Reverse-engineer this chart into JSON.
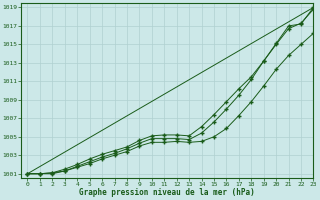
{
  "title": "Graphe pression niveau de la mer (hPa)",
  "background_color": "#cce8e8",
  "grid_color": "#b0d0d0",
  "line_color": "#1a5c1a",
  "text_color": "#1a5c1a",
  "xlim": [
    -0.5,
    23
  ],
  "ylim": [
    1000.5,
    1019.5
  ],
  "yticks": [
    1001,
    1003,
    1005,
    1007,
    1009,
    1011,
    1013,
    1015,
    1017,
    1019
  ],
  "xticks": [
    0,
    1,
    2,
    3,
    4,
    5,
    6,
    7,
    8,
    9,
    10,
    11,
    12,
    13,
    14,
    15,
    16,
    17,
    18,
    19,
    20,
    21,
    22,
    23
  ],
  "series1_x": [
    0,
    1,
    2,
    3,
    4,
    5,
    6,
    7,
    8,
    9,
    10,
    11,
    12,
    13,
    14,
    15,
    16,
    17,
    18,
    19,
    20,
    21,
    22,
    23
  ],
  "series1_y": [
    1001.0,
    1001.0,
    1001.1,
    1001.3,
    1001.7,
    1002.1,
    1002.6,
    1003.0,
    1003.4,
    1004.0,
    1004.4,
    1004.4,
    1004.5,
    1004.4,
    1004.5,
    1005.0,
    1005.9,
    1007.3,
    1008.8,
    1010.5,
    1012.3,
    1013.8,
    1015.0,
    1016.2
  ],
  "series2_x": [
    0,
    1,
    2,
    3,
    4,
    5,
    6,
    7,
    8,
    9,
    10,
    11,
    12,
    13,
    14,
    15,
    16,
    17,
    18,
    19,
    20,
    21,
    22,
    23
  ],
  "series2_y": [
    1001.0,
    1001.0,
    1001.0,
    1001.3,
    1001.8,
    1002.3,
    1002.8,
    1003.2,
    1003.7,
    1004.3,
    1004.8,
    1004.8,
    1004.8,
    1004.7,
    1005.4,
    1006.6,
    1008.0,
    1009.5,
    1011.2,
    1013.2,
    1015.0,
    1016.7,
    1017.3,
    1018.8
  ],
  "series3_x": [
    0,
    1,
    2,
    3,
    4,
    5,
    6,
    7,
    8,
    9,
    10,
    11,
    12,
    13,
    14,
    15,
    16,
    17,
    18,
    19,
    20,
    21,
    22,
    23
  ],
  "series3_y": [
    1001.0,
    1001.0,
    1001.1,
    1001.5,
    1002.0,
    1002.6,
    1003.1,
    1003.5,
    1003.9,
    1004.6,
    1005.1,
    1005.2,
    1005.2,
    1005.1,
    1006.1,
    1007.4,
    1008.8,
    1010.2,
    1011.5,
    1013.2,
    1015.1,
    1017.0,
    1017.2,
    1019.0
  ]
}
